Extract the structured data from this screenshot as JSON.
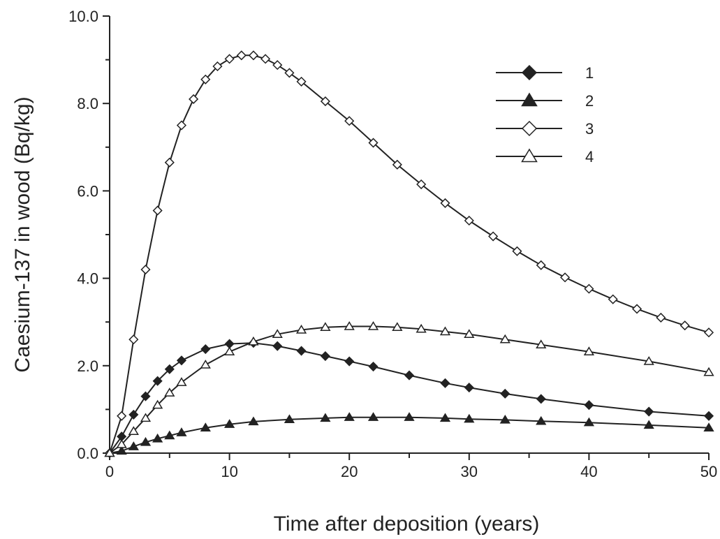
{
  "chart_data": {
    "type": "line",
    "title": "",
    "xlabel": "Time after deposition (years)",
    "ylabel": "Caesium-137 in wood (Bq/kg)",
    "xlim": [
      0,
      50
    ],
    "ylim": [
      0,
      10
    ],
    "x_ticks": [
      0,
      10,
      20,
      30,
      40,
      50
    ],
    "x_tick_labels": [
      "0",
      "10",
      "20",
      "30",
      "40",
      "50"
    ],
    "y_ticks": [
      0,
      2,
      4,
      6,
      8,
      10
    ],
    "y_tick_labels": [
      "0.0",
      "2.0",
      "4.0",
      "6.0",
      "8.0",
      "10.0"
    ],
    "x_minor_step": 5,
    "y_minor_step": 1,
    "grid": false,
    "legend_position": "top-right",
    "line_color": "#222222",
    "series": [
      {
        "name": "1",
        "marker": "diamond-filled",
        "x": [
          0,
          1,
          2,
          3,
          4,
          5,
          6,
          8,
          10,
          12,
          14,
          16,
          18,
          20,
          22,
          25,
          28,
          30,
          33,
          36,
          40,
          45,
          50
        ],
        "y": [
          0,
          0.38,
          0.88,
          1.3,
          1.65,
          1.92,
          2.12,
          2.38,
          2.5,
          2.52,
          2.45,
          2.34,
          2.22,
          2.1,
          1.98,
          1.78,
          1.6,
          1.5,
          1.36,
          1.24,
          1.1,
          0.95,
          0.85
        ]
      },
      {
        "name": "2",
        "marker": "triangle-filled",
        "x": [
          0,
          1,
          2,
          3,
          4,
          5,
          6,
          8,
          10,
          12,
          15,
          18,
          20,
          22,
          25,
          28,
          30,
          33,
          36,
          40,
          45,
          50
        ],
        "y": [
          0,
          0.05,
          0.15,
          0.25,
          0.33,
          0.4,
          0.47,
          0.58,
          0.66,
          0.72,
          0.77,
          0.8,
          0.82,
          0.82,
          0.82,
          0.8,
          0.78,
          0.76,
          0.73,
          0.7,
          0.64,
          0.58
        ]
      },
      {
        "name": "3",
        "marker": "diamond-open",
        "x": [
          0,
          1,
          2,
          3,
          4,
          5,
          6,
          7,
          8,
          9,
          10,
          11,
          12,
          13,
          14,
          15,
          16,
          18,
          20,
          22,
          24,
          26,
          28,
          30,
          32,
          34,
          36,
          38,
          40,
          42,
          44,
          46,
          48,
          50
        ],
        "y": [
          0,
          0.85,
          2.6,
          4.2,
          5.55,
          6.65,
          7.5,
          8.1,
          8.55,
          8.85,
          9.02,
          9.1,
          9.1,
          9.02,
          8.88,
          8.7,
          8.5,
          8.05,
          7.6,
          7.1,
          6.6,
          6.15,
          5.72,
          5.32,
          4.96,
          4.62,
          4.3,
          4.02,
          3.76,
          3.52,
          3.3,
          3.1,
          2.92,
          2.76
        ]
      },
      {
        "name": "4",
        "marker": "triangle-open",
        "x": [
          0,
          1,
          2,
          3,
          4,
          5,
          6,
          8,
          10,
          12,
          14,
          16,
          18,
          20,
          22,
          24,
          26,
          28,
          30,
          33,
          36,
          40,
          45,
          50
        ],
        "y": [
          0,
          0.2,
          0.5,
          0.8,
          1.1,
          1.38,
          1.62,
          2.02,
          2.32,
          2.55,
          2.72,
          2.82,
          2.88,
          2.9,
          2.9,
          2.88,
          2.84,
          2.78,
          2.72,
          2.6,
          2.48,
          2.32,
          2.1,
          1.85
        ]
      }
    ]
  }
}
